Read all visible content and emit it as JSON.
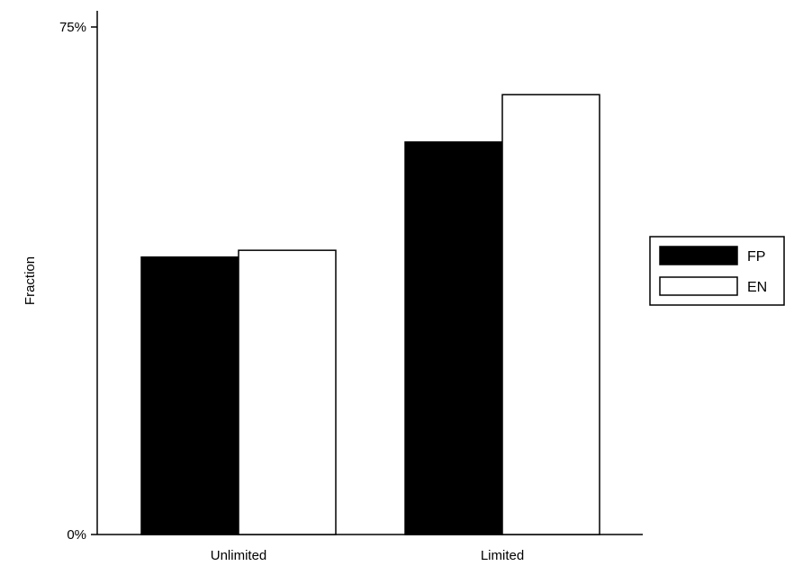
{
  "chart_data": {
    "type": "bar",
    "title": "",
    "xlabel": "",
    "ylabel": "Fraction",
    "categories": [
      "Unlimited",
      "Limited"
    ],
    "series": [
      {
        "name": "FP",
        "values": [
          41,
          58
        ],
        "color": "#000000"
      },
      {
        "name": "EN",
        "values": [
          42,
          65
        ],
        "color": "#ffffff"
      }
    ],
    "ylim": [
      0,
      75
    ],
    "yticks": [
      0,
      75
    ],
    "ytick_labels": [
      "0%",
      "75%"
    ],
    "grid": false,
    "legend_position": "right"
  }
}
